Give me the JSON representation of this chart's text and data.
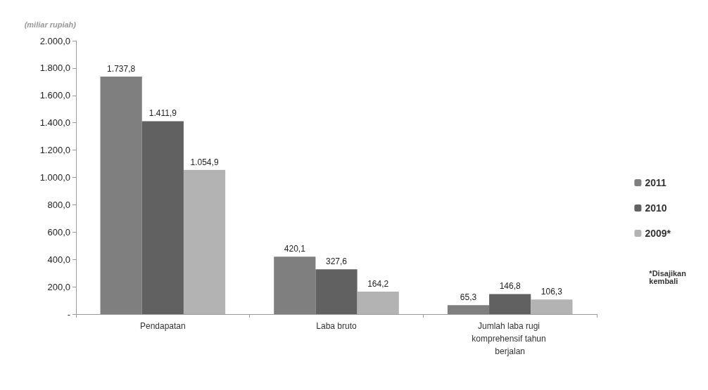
{
  "chart_data": {
    "type": "bar",
    "ylabel": "(miliar rupiah)",
    "categories": [
      "Pendapatan",
      "Laba bruto",
      "Jumlah laba rugi komprehensif tahun berjalan"
    ],
    "series": [
      {
        "name": "2011",
        "color": "#7f7f7f",
        "values": [
          1737.8,
          420.1,
          65.3
        ],
        "value_labels": [
          "1.737,8",
          "420,1",
          "65,3"
        ]
      },
      {
        "name": "2010",
        "color": "#616161",
        "values": [
          1411.9,
          327.6,
          146.8
        ],
        "value_labels": [
          "1.411,9",
          "327,6",
          "146,8"
        ]
      },
      {
        "name": "2009*",
        "color": "#b3b3b3",
        "values": [
          1054.9,
          164.2,
          106.3
        ],
        "value_labels": [
          "1.054,9",
          "164,2",
          "106,3"
        ]
      }
    ],
    "ylim": [
      0,
      2000
    ],
    "yticks": [
      {
        "value": 0,
        "label": "-"
      },
      {
        "value": 200,
        "label": "200,0"
      },
      {
        "value": 400,
        "label": "400,0"
      },
      {
        "value": 600,
        "label": "600,0"
      },
      {
        "value": 800,
        "label": "800,0"
      },
      {
        "value": 1000,
        "label": "1.000,0"
      },
      {
        "value": 1200,
        "label": "1.200,0"
      },
      {
        "value": 1400,
        "label": "1.400,0"
      },
      {
        "value": 1600,
        "label": "1.600,0"
      },
      {
        "value": 1800,
        "label": "1.800,0"
      },
      {
        "value": 2000,
        "label": "2.000,0"
      }
    ],
    "grid": false,
    "legend": "right",
    "annotations": [
      "*Disajikan kembali"
    ]
  }
}
